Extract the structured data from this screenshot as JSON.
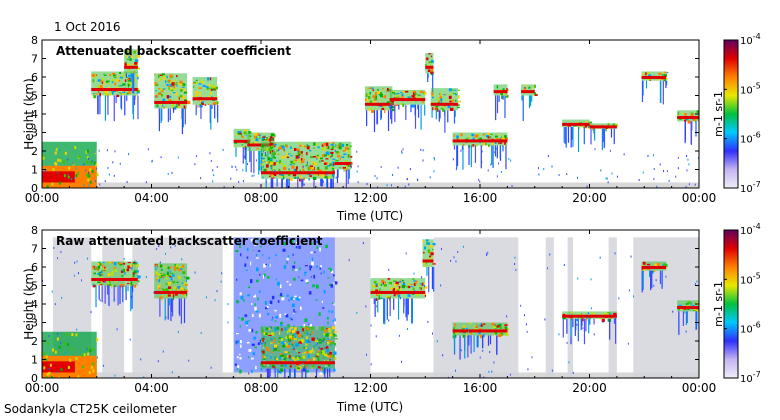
{
  "date_label": "1 Oct 2016",
  "instrument_label": "Sodankyla CT25K ceilometer",
  "colorbar_stops": [
    "#f0eef8",
    "#c4b4f0",
    "#3030ff",
    "#00c8ff",
    "#00c040",
    "#e8e800",
    "#ff8000",
    "#e00000",
    "#600060"
  ],
  "chart_data": [
    {
      "type": "heatmap",
      "title": "Attenuated backscatter coefficient",
      "xlabel": "Time (UTC)",
      "ylabel": "Height (km)",
      "xlim_hours": [
        0,
        24
      ],
      "ylim": [
        0,
        8
      ],
      "x_ticks": [
        "00:00",
        "04:00",
        "08:00",
        "12:00",
        "16:00",
        "20:00",
        "00:00"
      ],
      "y_ticks": [
        "0",
        "1",
        "2",
        "3",
        "4",
        "5",
        "6",
        "7",
        "8"
      ],
      "colorbar": {
        "label": "m-1 sr-1",
        "scale": "log",
        "range": [
          1e-07,
          0.0001
        ],
        "ticks": [
          {
            "base": "10",
            "exp": "-4"
          },
          {
            "base": "10",
            "exp": "-5"
          },
          {
            "base": "10",
            "exp": "-6"
          },
          {
            "base": "10",
            "exp": "-7"
          }
        ]
      },
      "features": [
        {
          "t0": 0.0,
          "t1": 2.0,
          "h0": 0.0,
          "h1": 2.5,
          "kind": "boundary_layer"
        },
        {
          "t0": 1.8,
          "t1": 3.5,
          "h0": 5.0,
          "h1": 6.3,
          "kind": "cloud"
        },
        {
          "t0": 3.0,
          "t1": 3.5,
          "h0": 6.2,
          "h1": 7.5,
          "kind": "cloud"
        },
        {
          "t0": 4.1,
          "t1": 5.3,
          "h0": 4.3,
          "h1": 6.2,
          "kind": "cloud"
        },
        {
          "t0": 5.5,
          "t1": 6.4,
          "h0": 4.5,
          "h1": 6.0,
          "kind": "cloud"
        },
        {
          "t0": 7.0,
          "t1": 7.6,
          "h0": 2.2,
          "h1": 3.2,
          "kind": "cloud"
        },
        {
          "t0": 7.5,
          "t1": 8.5,
          "h0": 2.0,
          "h1": 3.0,
          "kind": "cloud"
        },
        {
          "t0": 8.0,
          "t1": 10.7,
          "h0": 0.5,
          "h1": 2.5,
          "kind": "cloud"
        },
        {
          "t0": 10.7,
          "t1": 11.3,
          "h0": 1.0,
          "h1": 2.5,
          "kind": "cloud"
        },
        {
          "t0": 11.8,
          "t1": 12.8,
          "h0": 4.2,
          "h1": 5.5,
          "kind": "cloud"
        },
        {
          "t0": 12.7,
          "t1": 14.0,
          "h0": 4.5,
          "h1": 5.3,
          "kind": "cloud"
        },
        {
          "t0": 14.0,
          "t1": 14.3,
          "h0": 6.2,
          "h1": 7.3,
          "kind": "cloud"
        },
        {
          "t0": 14.2,
          "t1": 15.2,
          "h0": 4.2,
          "h1": 5.4,
          "kind": "cloud"
        },
        {
          "t0": 15.0,
          "t1": 17.0,
          "h0": 2.3,
          "h1": 3.0,
          "kind": "cloud"
        },
        {
          "t0": 16.5,
          "t1": 17.0,
          "h0": 5.0,
          "h1": 5.6,
          "kind": "cloud"
        },
        {
          "t0": 17.5,
          "t1": 18.0,
          "h0": 5.0,
          "h1": 5.6,
          "kind": "cloud"
        },
        {
          "t0": 19.0,
          "t1": 20.0,
          "h0": 3.3,
          "h1": 3.7,
          "kind": "cloud"
        },
        {
          "t0": 20.0,
          "t1": 21.0,
          "h0": 3.2,
          "h1": 3.5,
          "kind": "cloud"
        },
        {
          "t0": 21.9,
          "t1": 22.8,
          "h0": 5.8,
          "h1": 6.3,
          "kind": "cloud"
        },
        {
          "t0": 23.2,
          "t1": 24.0,
          "h0": 3.6,
          "h1": 4.2,
          "kind": "cloud"
        }
      ]
    },
    {
      "type": "heatmap",
      "title": "Raw attenuated backscatter coefficient",
      "xlabel": "Time (UTC)",
      "ylabel": "Height (km)",
      "xlim_hours": [
        0,
        24
      ],
      "ylim": [
        0,
        8
      ],
      "x_ticks": [
        "00:00",
        "04:00",
        "08:00",
        "12:00",
        "16:00",
        "20:00",
        "00:00"
      ],
      "y_ticks": [
        "0",
        "1",
        "2",
        "3",
        "4",
        "5",
        "6",
        "7",
        "8"
      ],
      "colorbar": {
        "label": "m-1 sr-1",
        "scale": "log",
        "range": [
          1e-07,
          0.0001
        ],
        "ticks": [
          {
            "base": "10",
            "exp": "-4"
          },
          {
            "base": "10",
            "exp": "-5"
          },
          {
            "base": "10",
            "exp": "-6"
          },
          {
            "base": "10",
            "exp": "-7"
          }
        ]
      },
      "features": [
        {
          "t0": 0.0,
          "t1": 2.0,
          "h0": 0.0,
          "h1": 2.5,
          "kind": "boundary_layer"
        },
        {
          "t0": 1.8,
          "t1": 3.5,
          "h0": 5.0,
          "h1": 6.3,
          "kind": "cloud"
        },
        {
          "t0": 4.1,
          "t1": 5.3,
          "h0": 4.3,
          "h1": 6.2,
          "kind": "cloud"
        },
        {
          "t0": 7.0,
          "t1": 10.7,
          "h0": 0.3,
          "h1": 7.6,
          "kind": "noise"
        },
        {
          "t0": 8.0,
          "t1": 10.7,
          "h0": 0.5,
          "h1": 2.8,
          "kind": "cloud"
        },
        {
          "t0": 12.0,
          "t1": 14.0,
          "h0": 4.3,
          "h1": 5.4,
          "kind": "cloud"
        },
        {
          "t0": 13.9,
          "t1": 14.3,
          "h0": 6.0,
          "h1": 7.5,
          "kind": "cloud"
        },
        {
          "t0": 15.0,
          "t1": 17.0,
          "h0": 2.3,
          "h1": 3.0,
          "kind": "cloud"
        },
        {
          "t0": 19.0,
          "t1": 21.0,
          "h0": 3.2,
          "h1": 3.6,
          "kind": "cloud"
        },
        {
          "t0": 21.9,
          "t1": 22.8,
          "h0": 5.8,
          "h1": 6.3,
          "kind": "cloud"
        },
        {
          "t0": 23.2,
          "t1": 24.0,
          "h0": 3.6,
          "h1": 4.2,
          "kind": "cloud"
        }
      ]
    }
  ]
}
